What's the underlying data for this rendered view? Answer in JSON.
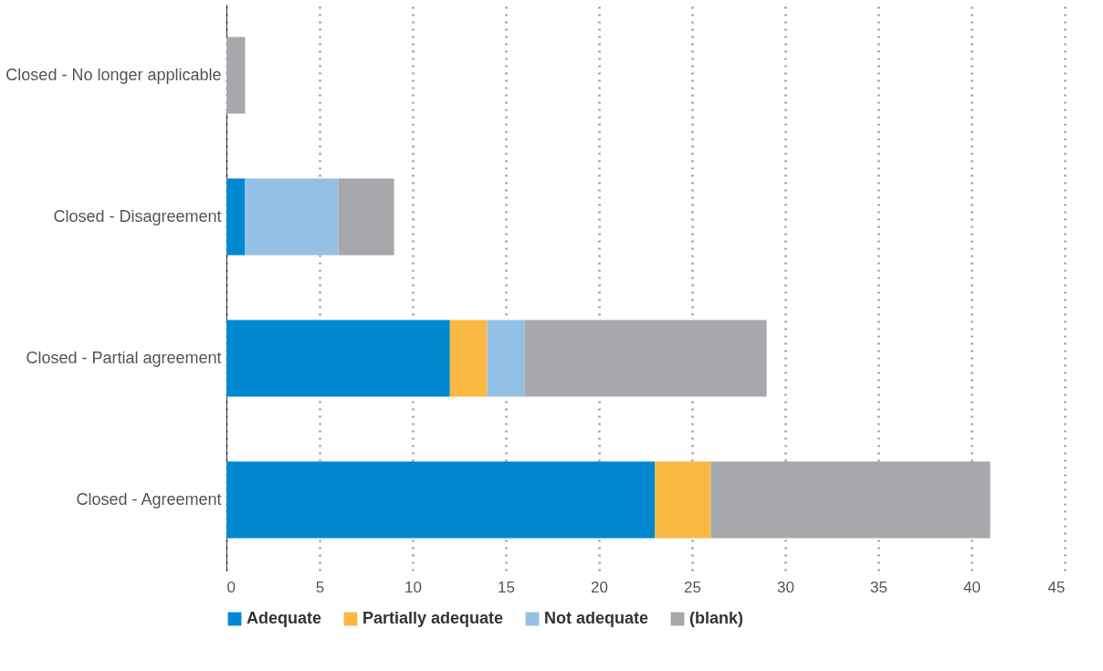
{
  "chart_data": {
    "type": "bar",
    "orientation": "horizontal",
    "stacked": true,
    "categories": [
      "Closed - No longer applicable",
      "Closed - Disagreement",
      "Closed - Partial agreement",
      "Closed - Agreement"
    ],
    "series": [
      {
        "name": "Adequate",
        "color": "#0088d1",
        "values": [
          0,
          1,
          12,
          23
        ]
      },
      {
        "name": "Partially adequate",
        "color": "#fbb843",
        "values": [
          0,
          0,
          2,
          3
        ]
      },
      {
        "name": "Not adequate",
        "color": "#93c1e6",
        "values": [
          0,
          5,
          2,
          0
        ]
      },
      {
        "name": "(blank)",
        "color": "#a7a8ab",
        "values": [
          1,
          3,
          13,
          15
        ]
      }
    ],
    "xlim": [
      0,
      45
    ],
    "xticks": [
      0,
      5,
      10,
      15,
      20,
      25,
      30,
      35,
      40,
      45
    ],
    "grid": "x",
    "legend": "bottom"
  }
}
